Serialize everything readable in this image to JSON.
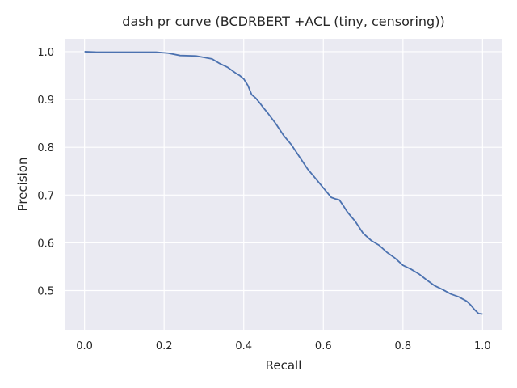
{
  "chart_data": {
    "type": "line",
    "title": "dash pr curve (BCDRBERT +ACL (tiny, censoring))",
    "xlabel": "Recall",
    "ylabel": "Precision",
    "xlim": [
      -0.05,
      1.05
    ],
    "ylim": [
      0.418,
      1.027
    ],
    "x_ticks": [
      0.0,
      0.2,
      0.4,
      0.6,
      0.8,
      1.0
    ],
    "x_tick_labels": [
      "0.0",
      "0.2",
      "0.4",
      "0.6",
      "0.8",
      "1.0"
    ],
    "y_ticks": [
      0.5,
      0.6,
      0.7,
      0.8,
      0.9,
      1.0
    ],
    "y_tick_labels": [
      "0.5",
      "0.6",
      "0.7",
      "0.8",
      "0.9",
      "1.0"
    ],
    "grid": true,
    "legend": "none",
    "colors": {
      "background": "#EAEAF2",
      "grid": "#FFFFFF",
      "line": "#4C72B0",
      "text": "#262626"
    },
    "series": [
      {
        "x": [
          0.0,
          0.03,
          0.1,
          0.18,
          0.21,
          0.24,
          0.28,
          0.32,
          0.34,
          0.36,
          0.38,
          0.39,
          0.4,
          0.41,
          0.42,
          0.43,
          0.44,
          0.45,
          0.46,
          0.48,
          0.5,
          0.52,
          0.54,
          0.56,
          0.58,
          0.6,
          0.62,
          0.63,
          0.64,
          0.65,
          0.66,
          0.68,
          0.7,
          0.72,
          0.74,
          0.76,
          0.78,
          0.8,
          0.82,
          0.84,
          0.86,
          0.88,
          0.9,
          0.92,
          0.94,
          0.96,
          0.97,
          0.98,
          0.99,
          1.0
        ],
        "y": [
          1.0,
          0.999,
          0.999,
          0.999,
          0.997,
          0.992,
          0.991,
          0.985,
          0.975,
          0.967,
          0.955,
          0.95,
          0.943,
          0.93,
          0.91,
          0.903,
          0.893,
          0.882,
          0.872,
          0.85,
          0.825,
          0.805,
          0.78,
          0.755,
          0.735,
          0.715,
          0.695,
          0.692,
          0.69,
          0.678,
          0.665,
          0.645,
          0.62,
          0.605,
          0.595,
          0.58,
          0.568,
          0.553,
          0.545,
          0.535,
          0.522,
          0.51,
          0.502,
          0.493,
          0.487,
          0.478,
          0.47,
          0.46,
          0.452,
          0.451
        ]
      }
    ]
  }
}
